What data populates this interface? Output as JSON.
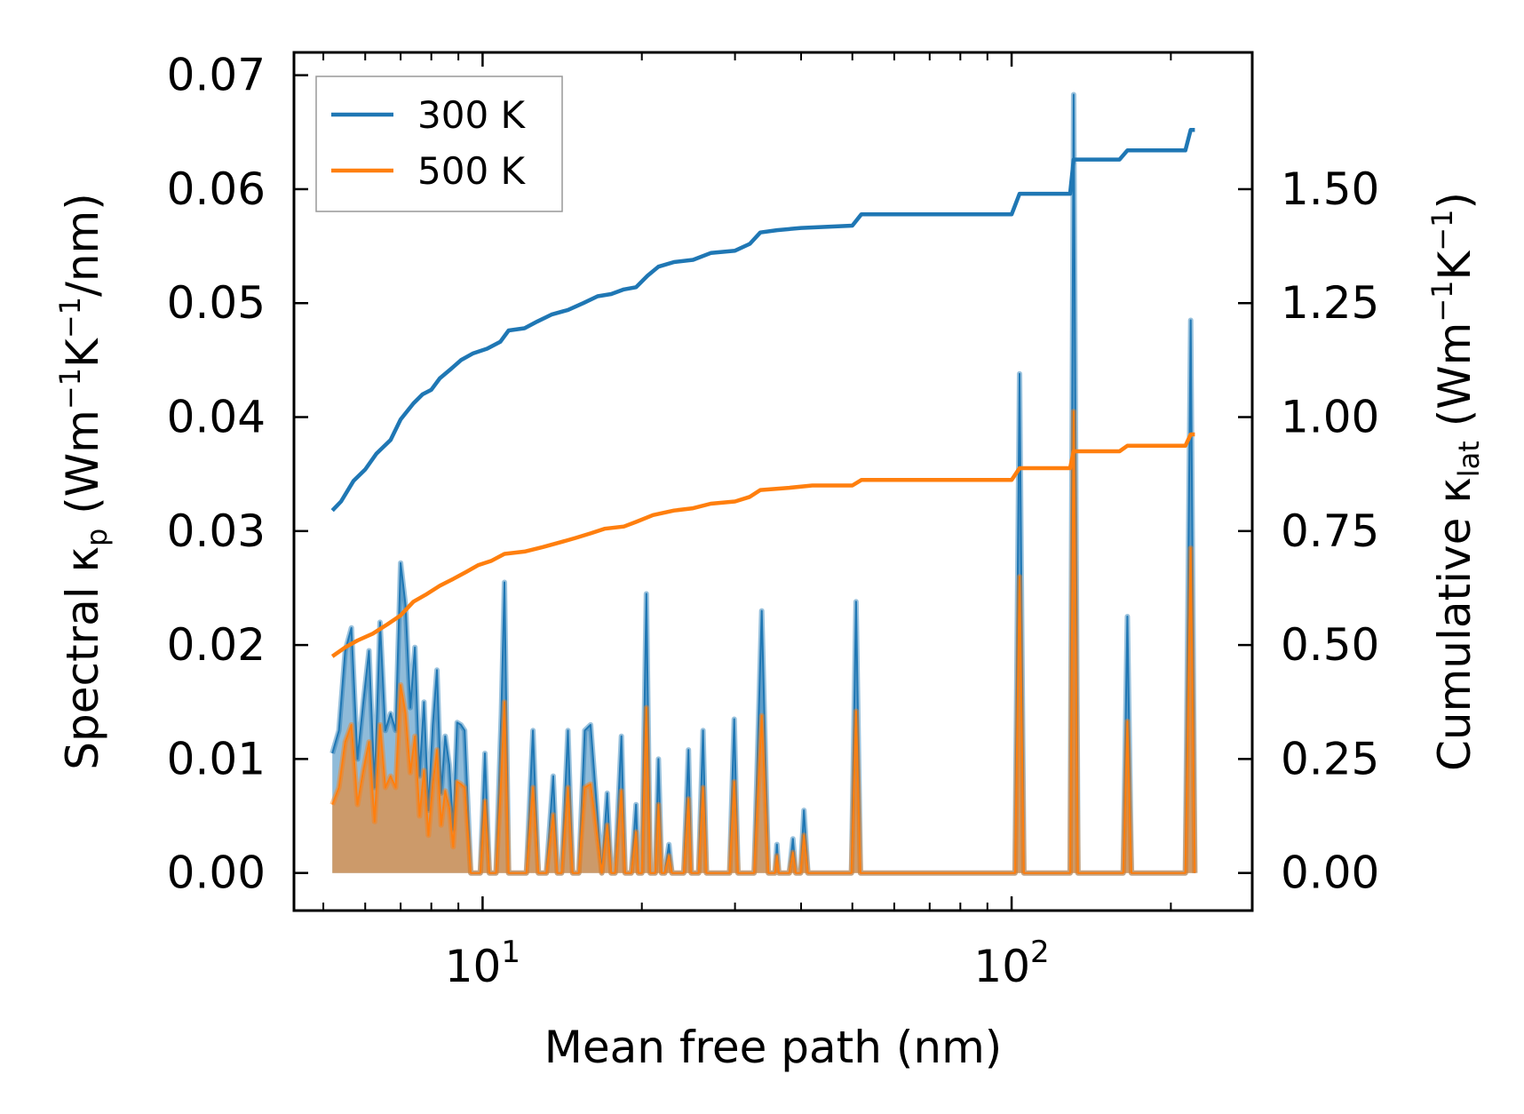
{
  "chart_data": {
    "type": "line",
    "title": "",
    "xlabel": "Mean free path (nm)",
    "xscale": "log",
    "xlim": [
      4.4,
      285
    ],
    "x_ticks": [
      {
        "value": 10,
        "base": "10",
        "exp": "1"
      },
      {
        "value": 100,
        "base": "10",
        "exp": "2"
      }
    ],
    "y_left": {
      "label_parts": [
        "Spectral κ",
        "p",
        " (Wm",
        "−1",
        "K",
        "−1",
        "/nm)"
      ],
      "lim": [
        -0.0033,
        0.072
      ],
      "ticks": [
        0.0,
        0.01,
        0.02,
        0.03,
        0.04,
        0.05,
        0.06,
        0.07
      ],
      "tick_labels": [
        "0.00",
        "0.01",
        "0.02",
        "0.03",
        "0.04",
        "0.05",
        "0.06",
        "0.07"
      ]
    },
    "y_right": {
      "label_parts": [
        "Cumulative κ",
        "lat",
        " (Wm",
        "−1",
        "K",
        "−1",
        ")"
      ],
      "lim": [
        -0.0825,
        1.8
      ],
      "ticks": [
        0.0,
        0.25,
        0.5,
        0.75,
        1.0,
        1.25,
        1.5
      ],
      "tick_labels": [
        "0.00",
        "0.25",
        "0.50",
        "0.75",
        "1.00",
        "1.25",
        "1.50"
      ]
    },
    "legend": {
      "position": "top-left",
      "entries": [
        "300 K",
        "500 K"
      ]
    },
    "series": [
      {
        "name": "300 K",
        "color": "#1f77b4",
        "spectral": [
          [
            5.2,
            0.0105
          ],
          [
            5.35,
            0.0125
          ],
          [
            5.5,
            0.0195
          ],
          [
            5.65,
            0.0215
          ],
          [
            5.8,
            0.01
          ],
          [
            5.95,
            0.015
          ],
          [
            6.1,
            0.0195
          ],
          [
            6.25,
            0.0075
          ],
          [
            6.4,
            0.022
          ],
          [
            6.55,
            0.0125
          ],
          [
            6.7,
            0.014
          ],
          [
            6.85,
            0.0125
          ],
          [
            7.0,
            0.0272
          ],
          [
            7.15,
            0.0235
          ],
          [
            7.3,
            0.0145
          ],
          [
            7.45,
            0.0198
          ],
          [
            7.6,
            0.0085
          ],
          [
            7.75,
            0.015
          ],
          [
            7.9,
            0.0055
          ],
          [
            8.05,
            0.013
          ],
          [
            8.2,
            0.0178
          ],
          [
            8.35,
            0.007
          ],
          [
            8.5,
            0.012
          ],
          [
            8.65,
            0.0095
          ],
          [
            8.8,
            0.0038
          ],
          [
            8.95,
            0.0132
          ],
          [
            9.1,
            0.013
          ],
          [
            9.25,
            0.0125
          ],
          [
            9.5,
            0.0
          ],
          [
            9.9,
            0.0
          ],
          [
            10.1,
            0.0105
          ],
          [
            10.3,
            0.0
          ],
          [
            10.6,
            0.0
          ],
          [
            10.85,
            0.014
          ],
          [
            11.0,
            0.0255
          ],
          [
            11.2,
            0.0
          ],
          [
            12.1,
            0.0
          ],
          [
            12.45,
            0.0125
          ],
          [
            12.75,
            0.0
          ],
          [
            13.2,
            0.0
          ],
          [
            13.6,
            0.0085
          ],
          [
            13.85,
            0.0
          ],
          [
            14.1,
            0.0
          ],
          [
            14.5,
            0.0125
          ],
          [
            14.8,
            0.0
          ],
          [
            15.2,
            0.0
          ],
          [
            15.6,
            0.0125
          ],
          [
            16.0,
            0.013
          ],
          [
            16.8,
            0.0
          ],
          [
            17.2,
            0.007
          ],
          [
            17.5,
            0.0
          ],
          [
            17.8,
            0.0
          ],
          [
            18.3,
            0.012
          ],
          [
            18.6,
            0.0
          ],
          [
            19.1,
            0.0
          ],
          [
            19.5,
            0.006
          ],
          [
            19.7,
            0.0
          ],
          [
            20.0,
            0.0
          ],
          [
            20.4,
            0.0245
          ],
          [
            20.75,
            0.0
          ],
          [
            21.2,
            0.0
          ],
          [
            21.5,
            0.01
          ],
          [
            21.8,
            0.0
          ],
          [
            22.1,
            0.0
          ],
          [
            22.5,
            0.0025
          ],
          [
            22.8,
            0.0
          ],
          [
            24.0,
            0.0
          ],
          [
            24.5,
            0.0108
          ],
          [
            24.8,
            0.0
          ],
          [
            25.6,
            0.0
          ],
          [
            26.1,
            0.0125
          ],
          [
            26.5,
            0.0
          ],
          [
            29.3,
            0.0
          ],
          [
            29.9,
            0.0135
          ],
          [
            30.4,
            0.0
          ],
          [
            32.6,
            0.0
          ],
          [
            33.7,
            0.023
          ],
          [
            34.7,
            0.0
          ],
          [
            35.7,
            0.0
          ],
          [
            36.0,
            0.0025
          ],
          [
            36.3,
            0.0
          ],
          [
            38.0,
            0.0
          ],
          [
            38.6,
            0.003
          ],
          [
            39.1,
            0.0
          ],
          [
            39.9,
            0.0
          ],
          [
            40.5,
            0.0055
          ],
          [
            41.2,
            0.0
          ],
          [
            49.8,
            0.0
          ],
          [
            50.8,
            0.0238
          ],
          [
            51.8,
            0.0
          ],
          [
            101.5,
            0.0
          ],
          [
            103.5,
            0.0438
          ],
          [
            105.5,
            0.0
          ],
          [
            129.0,
            0.0
          ],
          [
            131.0,
            0.0683
          ],
          [
            133.5,
            0.0
          ],
          [
            162.5,
            0.0
          ],
          [
            165.5,
            0.0225
          ],
          [
            168.5,
            0.0
          ],
          [
            213.0,
            0.0
          ],
          [
            218.0,
            0.0485
          ],
          [
            222.0,
            0.0
          ]
        ],
        "cumulative": [
          [
            5.2,
            0.795
          ],
          [
            5.4,
            0.815
          ],
          [
            5.7,
            0.86
          ],
          [
            6.0,
            0.885
          ],
          [
            6.3,
            0.92
          ],
          [
            6.7,
            0.95
          ],
          [
            7.0,
            0.995
          ],
          [
            7.4,
            1.03
          ],
          [
            7.7,
            1.05
          ],
          [
            8.0,
            1.06
          ],
          [
            8.3,
            1.085
          ],
          [
            8.7,
            1.105
          ],
          [
            9.1,
            1.125
          ],
          [
            9.6,
            1.14
          ],
          [
            10.2,
            1.15
          ],
          [
            10.8,
            1.165
          ],
          [
            11.2,
            1.19
          ],
          [
            12.0,
            1.195
          ],
          [
            12.7,
            1.21
          ],
          [
            13.5,
            1.225
          ],
          [
            14.5,
            1.235
          ],
          [
            15.5,
            1.25
          ],
          [
            16.5,
            1.265
          ],
          [
            17.5,
            1.27
          ],
          [
            18.5,
            1.28
          ],
          [
            19.5,
            1.285
          ],
          [
            20.5,
            1.31
          ],
          [
            21.5,
            1.33
          ],
          [
            23.0,
            1.34
          ],
          [
            25.0,
            1.345
          ],
          [
            27.0,
            1.36
          ],
          [
            30.0,
            1.365
          ],
          [
            32.0,
            1.38
          ],
          [
            33.5,
            1.405
          ],
          [
            36.0,
            1.41
          ],
          [
            40.0,
            1.415
          ],
          [
            50.0,
            1.42
          ],
          [
            52.0,
            1.445
          ],
          [
            100.0,
            1.445
          ],
          [
            103.5,
            1.49
          ],
          [
            129.0,
            1.49
          ],
          [
            131.0,
            1.565
          ],
          [
            160.0,
            1.565
          ],
          [
            165.5,
            1.585
          ],
          [
            213.0,
            1.585
          ],
          [
            218.0,
            1.63
          ],
          [
            222.0,
            1.63
          ]
        ]
      },
      {
        "name": "500 K",
        "color": "#ff7f0e",
        "spectral": [
          [
            5.2,
            0.006
          ],
          [
            5.35,
            0.0075
          ],
          [
            5.5,
            0.0115
          ],
          [
            5.65,
            0.013
          ],
          [
            5.8,
            0.006
          ],
          [
            5.95,
            0.009
          ],
          [
            6.1,
            0.0115
          ],
          [
            6.25,
            0.0045
          ],
          [
            6.4,
            0.013
          ],
          [
            6.55,
            0.0075
          ],
          [
            6.7,
            0.0085
          ],
          [
            6.85,
            0.0075
          ],
          [
            7.0,
            0.0165
          ],
          [
            7.15,
            0.014
          ],
          [
            7.3,
            0.0088
          ],
          [
            7.45,
            0.012
          ],
          [
            7.6,
            0.005
          ],
          [
            7.75,
            0.009
          ],
          [
            7.9,
            0.0033
          ],
          [
            8.05,
            0.0078
          ],
          [
            8.2,
            0.0108
          ],
          [
            8.35,
            0.0042
          ],
          [
            8.5,
            0.0072
          ],
          [
            8.65,
            0.0057
          ],
          [
            8.8,
            0.0023
          ],
          [
            8.95,
            0.008
          ],
          [
            9.1,
            0.0078
          ],
          [
            9.25,
            0.0075
          ],
          [
            9.5,
            0.0
          ],
          [
            9.9,
            0.0
          ],
          [
            10.1,
            0.0063
          ],
          [
            10.3,
            0.0
          ],
          [
            10.6,
            0.0
          ],
          [
            10.85,
            0.0084
          ],
          [
            11.0,
            0.015
          ],
          [
            11.2,
            0.0
          ],
          [
            12.1,
            0.0
          ],
          [
            12.45,
            0.0075
          ],
          [
            12.75,
            0.0
          ],
          [
            13.2,
            0.0
          ],
          [
            13.6,
            0.0051
          ],
          [
            13.85,
            0.0
          ],
          [
            14.1,
            0.0
          ],
          [
            14.5,
            0.0075
          ],
          [
            14.8,
            0.0
          ],
          [
            15.2,
            0.0
          ],
          [
            15.6,
            0.0075
          ],
          [
            16.0,
            0.0078
          ],
          [
            16.8,
            0.0
          ],
          [
            17.2,
            0.0042
          ],
          [
            17.5,
            0.0
          ],
          [
            17.8,
            0.0
          ],
          [
            18.3,
            0.0072
          ],
          [
            18.6,
            0.0
          ],
          [
            19.1,
            0.0
          ],
          [
            19.5,
            0.0036
          ],
          [
            19.7,
            0.0
          ],
          [
            20.0,
            0.0
          ],
          [
            20.4,
            0.0145
          ],
          [
            20.75,
            0.0
          ],
          [
            21.2,
            0.0
          ],
          [
            21.5,
            0.006
          ],
          [
            21.8,
            0.0
          ],
          [
            22.1,
            0.0
          ],
          [
            22.5,
            0.0015
          ],
          [
            22.8,
            0.0
          ],
          [
            24.0,
            0.0
          ],
          [
            24.5,
            0.0065
          ],
          [
            24.8,
            0.0
          ],
          [
            25.6,
            0.0
          ],
          [
            26.1,
            0.0075
          ],
          [
            26.5,
            0.0
          ],
          [
            29.3,
            0.0
          ],
          [
            29.9,
            0.008
          ],
          [
            30.4,
            0.0
          ],
          [
            32.6,
            0.0
          ],
          [
            33.7,
            0.0138
          ],
          [
            34.7,
            0.0
          ],
          [
            35.7,
            0.0
          ],
          [
            36.0,
            0.0015
          ],
          [
            36.3,
            0.0
          ],
          [
            38.0,
            0.0
          ],
          [
            38.6,
            0.0018
          ],
          [
            39.1,
            0.0
          ],
          [
            39.9,
            0.0
          ],
          [
            40.5,
            0.0033
          ],
          [
            41.2,
            0.0
          ],
          [
            49.8,
            0.0
          ],
          [
            50.8,
            0.0142
          ],
          [
            51.8,
            0.0
          ],
          [
            101.5,
            0.0
          ],
          [
            103.5,
            0.026
          ],
          [
            105.5,
            0.0
          ],
          [
            129.0,
            0.0
          ],
          [
            131.0,
            0.0405
          ],
          [
            133.5,
            0.0
          ],
          [
            162.5,
            0.0
          ],
          [
            165.5,
            0.0133
          ],
          [
            168.5,
            0.0
          ],
          [
            213.0,
            0.0
          ],
          [
            218.0,
            0.0285
          ],
          [
            222.0,
            0.0
          ]
        ],
        "cumulative": [
          [
            5.2,
            0.475
          ],
          [
            5.5,
            0.495
          ],
          [
            5.8,
            0.51
          ],
          [
            6.2,
            0.525
          ],
          [
            6.6,
            0.545
          ],
          [
            7.0,
            0.565
          ],
          [
            7.4,
            0.595
          ],
          [
            7.8,
            0.61
          ],
          [
            8.3,
            0.63
          ],
          [
            8.8,
            0.645
          ],
          [
            9.3,
            0.66
          ],
          [
            9.8,
            0.675
          ],
          [
            10.4,
            0.685
          ],
          [
            11.0,
            0.7
          ],
          [
            12.0,
            0.705
          ],
          [
            13.0,
            0.715
          ],
          [
            14.0,
            0.725
          ],
          [
            15.0,
            0.735
          ],
          [
            16.0,
            0.745
          ],
          [
            17.0,
            0.755
          ],
          [
            18.5,
            0.76
          ],
          [
            19.5,
            0.77
          ],
          [
            21.0,
            0.785
          ],
          [
            23.0,
            0.795
          ],
          [
            25.0,
            0.8
          ],
          [
            27.0,
            0.81
          ],
          [
            30.0,
            0.815
          ],
          [
            32.0,
            0.825
          ],
          [
            33.5,
            0.84
          ],
          [
            38.0,
            0.845
          ],
          [
            42.0,
            0.85
          ],
          [
            50.0,
            0.85
          ],
          [
            52.0,
            0.862
          ],
          [
            100.0,
            0.862
          ],
          [
            103.5,
            0.888
          ],
          [
            129.0,
            0.888
          ],
          [
            131.0,
            0.925
          ],
          [
            160.0,
            0.925
          ],
          [
            165.5,
            0.937
          ],
          [
            213.0,
            0.937
          ],
          [
            218.0,
            0.962
          ],
          [
            222.0,
            0.962
          ]
        ]
      }
    ]
  }
}
